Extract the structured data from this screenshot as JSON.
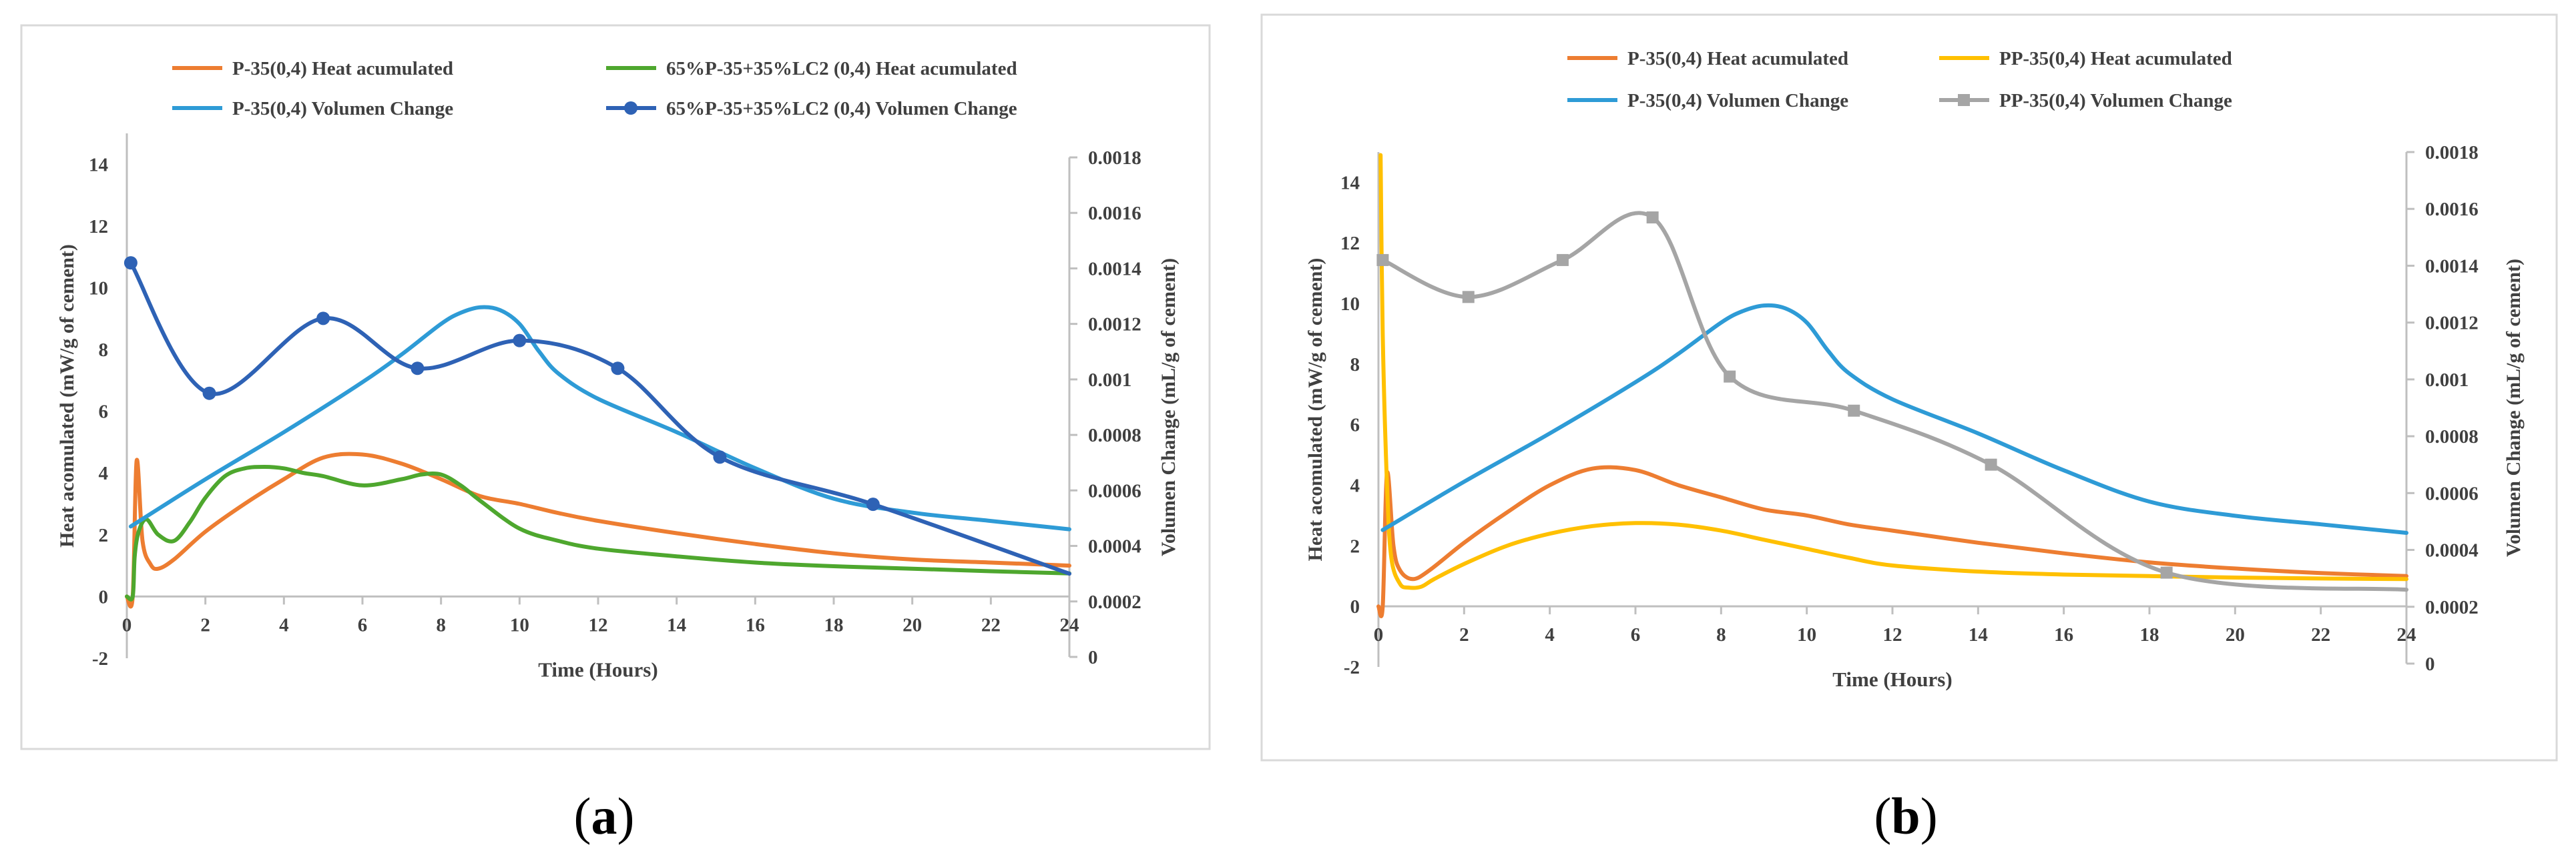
{
  "panel_labels": [
    "(a)",
    "(b)"
  ],
  "colors": {
    "orange": "#ED7D31",
    "green": "#4EA72E",
    "lightblue": "#2E9BD6",
    "darkblue": "#2E62B5",
    "yellow": "#FFC000",
    "gray": "#A5A5A5",
    "axis": "#BFBFBF",
    "text": "#404040"
  },
  "chart_data": [
    {
      "type": "line",
      "xlabel": "Time (Hours)",
      "ylabel": "Heat acomulated (mW/g of cement)",
      "y2label": "Volumen Change  (mL/g of cement)",
      "xlim": [
        0,
        24
      ],
      "ylim": [
        -2,
        15
      ],
      "y2lim": [
        0,
        0.0018
      ],
      "xticks": [
        "0",
        "2",
        "4",
        "6",
        "8",
        "10",
        "12",
        "14",
        "16",
        "18",
        "20",
        "22",
        "24"
      ],
      "yticks": [
        "-2",
        "0",
        "2",
        "4",
        "6",
        "8",
        "10",
        "12",
        "14"
      ],
      "y2ticks": [
        "0",
        "0.0002",
        "0.0004",
        "0.0006",
        "0.0008",
        "0.001",
        "0.0012",
        "0.0014",
        "0.0016",
        "0.0018"
      ],
      "legend": "top",
      "grid": false,
      "series": [
        {
          "name": "P-35(0,4) Heat acumulated",
          "axis": "left",
          "color": "#ED7D31",
          "marker": "none",
          "x": [
            0,
            0.15,
            0.25,
            0.4,
            0.6,
            0.8,
            1.2,
            2,
            3,
            4,
            5,
            6,
            7,
            8,
            9,
            10,
            11,
            12,
            14,
            16,
            18,
            20,
            22,
            24
          ],
          "y": [
            0,
            0,
            4.4,
            1.8,
            1.05,
            0.9,
            1.2,
            2.1,
            3.0,
            3.8,
            4.5,
            4.6,
            4.3,
            3.8,
            3.25,
            3.0,
            2.7,
            2.45,
            2.05,
            1.7,
            1.4,
            1.2,
            1.1,
            1.0
          ]
        },
        {
          "name": "65%P-35+35%LC2 (0,4) Heat acumulated",
          "axis": "left",
          "color": "#4EA72E",
          "marker": "none",
          "x": [
            0,
            0.15,
            0.2,
            0.3,
            0.5,
            0.8,
            1.2,
            1.6,
            2,
            2.5,
            3,
            3.5,
            4,
            4.5,
            5,
            6,
            7,
            7.5,
            8,
            8.5,
            9,
            10,
            11,
            12,
            14,
            16,
            18,
            20,
            22,
            24
          ],
          "y": [
            0,
            0,
            1.3,
            2.1,
            2.5,
            2.0,
            1.8,
            2.4,
            3.2,
            3.9,
            4.15,
            4.2,
            4.15,
            4.0,
            3.9,
            3.6,
            3.8,
            3.95,
            3.95,
            3.6,
            3.1,
            2.2,
            1.8,
            1.55,
            1.3,
            1.1,
            0.98,
            0.9,
            0.82,
            0.75
          ]
        },
        {
          "name": "P-35(0,4) Volumen Change",
          "axis": "right",
          "color": "#2E9BD6",
          "marker": "none",
          "x": [
            0.1,
            2,
            4,
            6,
            7,
            8,
            8.5,
            9,
            9.5,
            10,
            10.5,
            11,
            12,
            14,
            16,
            18,
            20,
            22,
            24
          ],
          "y": [
            0.00047,
            0.00064,
            0.00081,
            0.00099,
            0.00109,
            0.0012,
            0.00124,
            0.00126,
            0.00125,
            0.0012,
            0.0011,
            0.00102,
            0.00093,
            0.00081,
            0.00068,
            0.00057,
            0.00052,
            0.00049,
            0.00046
          ]
        },
        {
          "name": "65%P-35+35%LC2 (0,4) Volumen Change",
          "axis": "right",
          "color": "#2E62B5",
          "marker": "circle",
          "x": [
            0.1,
            2.1,
            5.0,
            7.4,
            10.0,
            12.5,
            15.1,
            19.0,
            24
          ],
          "y": [
            0.00142,
            0.00095,
            0.00122,
            0.00104,
            0.00114,
            0.00104,
            0.00072,
            0.00055,
            0.0003
          ]
        }
      ]
    },
    {
      "type": "line",
      "xlabel": "Time (Hours)",
      "ylabel": "Heat acomulated (mW/g of cement)",
      "y2label": "Volumen Change  (mL/g of cement)",
      "xlim": [
        0,
        24
      ],
      "ylim": [
        -2,
        15
      ],
      "y2lim": [
        0,
        0.0018
      ],
      "xticks": [
        "0",
        "2",
        "4",
        "6",
        "8",
        "10",
        "12",
        "14",
        "16",
        "18",
        "20",
        "22",
        "24"
      ],
      "yticks": [
        "-2",
        "0",
        "2",
        "4",
        "6",
        "8",
        "10",
        "12",
        "14"
      ],
      "y2ticks": [
        "0",
        "0.0002",
        "0.0004",
        "0.0006",
        "0.0008",
        "0.001",
        "0.0012",
        "0.0014",
        "0.0016",
        "0.0018"
      ],
      "legend": "top",
      "grid": false,
      "series": [
        {
          "name": "P-35(0,4) Heat acumulated",
          "axis": "left",
          "color": "#ED7D31",
          "marker": "none",
          "x": [
            0,
            0.1,
            0.2,
            0.35,
            0.5,
            0.8,
            1.2,
            2,
            3,
            4,
            5,
            6,
            7,
            8,
            9,
            10,
            11,
            12,
            14,
            16,
            18,
            20,
            22,
            24
          ],
          "y": [
            0,
            0,
            4.4,
            2.0,
            1.2,
            0.9,
            1.2,
            2.1,
            3.1,
            4.0,
            4.55,
            4.5,
            4.0,
            3.6,
            3.2,
            3.0,
            2.7,
            2.5,
            2.1,
            1.75,
            1.45,
            1.25,
            1.1,
            1.0
          ]
        },
        {
          "name": "PP-35(0,4) Heat acumulated",
          "axis": "left",
          "color": "#FFC000",
          "marker": "none",
          "x": [
            0.05,
            0.1,
            0.2,
            0.3,
            0.5,
            0.7,
            1.0,
            1.3,
            2,
            3,
            4,
            5,
            6,
            7,
            8,
            9,
            10,
            11,
            12,
            14,
            16,
            18,
            20,
            22,
            24
          ],
          "y": [
            14.9,
            9.0,
            4.0,
            1.6,
            0.75,
            0.62,
            0.65,
            0.9,
            1.4,
            2.0,
            2.4,
            2.65,
            2.75,
            2.7,
            2.5,
            2.2,
            1.9,
            1.6,
            1.35,
            1.15,
            1.05,
            1.0,
            0.95,
            0.92,
            0.9
          ]
        },
        {
          "name": "P-35(0,4) Volumen Change",
          "axis": "right",
          "color": "#2E9BD6",
          "marker": "none",
          "x": [
            0.1,
            2,
            4,
            6,
            7,
            8,
            8.5,
            9,
            9.5,
            10,
            10.5,
            11,
            12,
            14,
            16,
            18,
            20,
            22,
            24
          ],
          "y": [
            0.00047,
            0.00064,
            0.00081,
            0.00099,
            0.00109,
            0.0012,
            0.00124,
            0.00126,
            0.00125,
            0.0012,
            0.0011,
            0.00102,
            0.00093,
            0.00081,
            0.00068,
            0.00057,
            0.00052,
            0.00049,
            0.00046
          ]
        },
        {
          "name": "PP-35(0,4) Volumen Change",
          "axis": "right",
          "color": "#A5A5A5",
          "marker": "square",
          "x": [
            0.1,
            2.1,
            4.3,
            6.4,
            8.2,
            11.1,
            14.3,
            18.4,
            24
          ],
          "y": [
            0.00142,
            0.00129,
            0.00142,
            0.00157,
            0.00101,
            0.00089,
            0.0007,
            0.00032,
            0.00026
          ]
        }
      ]
    }
  ]
}
